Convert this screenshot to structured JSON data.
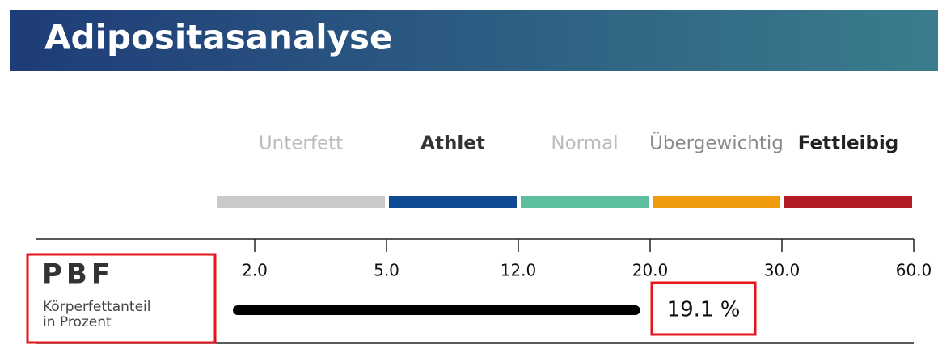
{
  "header": {
    "title": "Adipositasanalyse"
  },
  "scale": {
    "categories": [
      {
        "label": "Unterfett",
        "color": "#c8c9cb",
        "text_color": "#bcbcbc"
      },
      {
        "label": "Athlet",
        "color": "#0d4a93",
        "text_color": "#333333"
      },
      {
        "label": "Normal",
        "color": "#5dbf9f",
        "text_color": "#bcbcbc"
      },
      {
        "label": "Übergewichtig",
        "color": "#f09a0e",
        "text_color": "#8a8a8a"
      },
      {
        "label": "Fettleibig",
        "color": "#b31c24",
        "text_color": "#222222"
      }
    ],
    "ticks": [
      {
        "value": 2,
        "label": "2.0"
      },
      {
        "value": 5,
        "label": "5.0"
      },
      {
        "value": 12,
        "label": "12.0"
      },
      {
        "value": 20,
        "label": "20.0"
      },
      {
        "value": 30,
        "label": "30.0"
      },
      {
        "value": 60,
        "label": "60.0"
      }
    ]
  },
  "row": {
    "label": "PBF",
    "sublabel": [
      "Körperfettanteil",
      "in Prozent"
    ],
    "value": 19.1,
    "value_label": "19.1 %"
  }
}
